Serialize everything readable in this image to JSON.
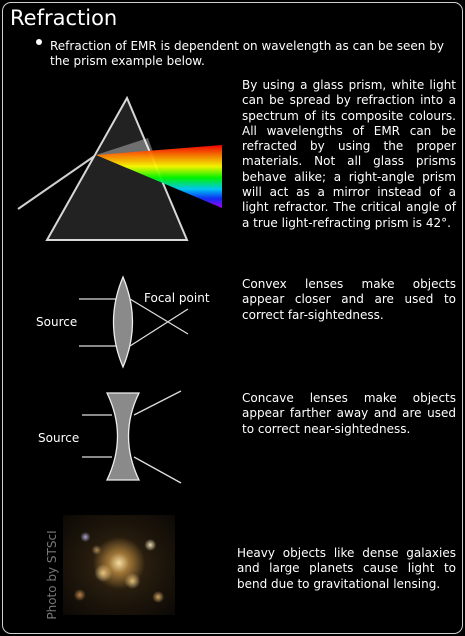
{
  "title": "Refraction",
  "bullet": "Refraction of EMR is dependent on wavelength as can be seen by the prism example below.",
  "sections": {
    "prism_text": "By using a glass prism, white light can be spread by refraction into a spectrum of its composite colours. All wavelengths of EMR can be refracted by using the proper materials. Not all glass prisms behave alike; a right-angle prism will act as a mirror instead of a light refractor. The critical angle of a true light-refracting prism is 42°.",
    "convex_text": "Convex lenses make objects appear closer and are used to correct far-sightedness.",
    "concave_text": "Concave lenses make objects appear farther away and are used to correct near-sightedness.",
    "lensing_text": "Heavy objects like dense galaxies and large planets cause light to bend due to gravitational lensing."
  },
  "labels": {
    "convex_source": "Source",
    "focal_point": "Focal point",
    "concave_source": "Source",
    "photo_credit": "Photo by STScI"
  },
  "colors": {
    "background": "#000000",
    "text": "#ffffff",
    "prism": "#2a2a2a",
    "lens_fill": "#8a8a8a",
    "credit": "#777777"
  }
}
